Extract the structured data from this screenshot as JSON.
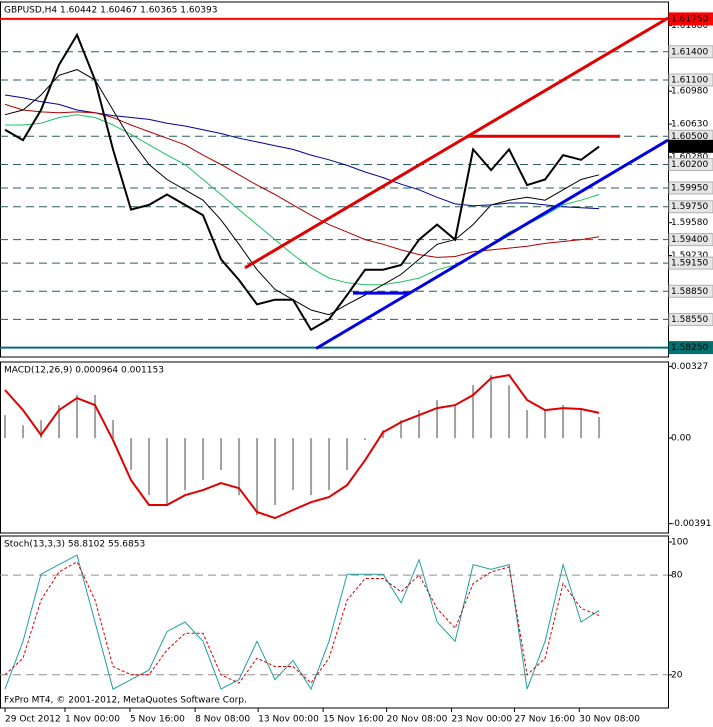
{
  "footer": "FxPro MT4, © 2001-2012, MetaQuotes Software Corp.",
  "chart_data": [
    {
      "type": "line",
      "title": "GBPUSD,H4 1.60442 1.60467 1.60365 1.60393",
      "xlim": [
        -0.28,
        36.83
      ],
      "ylim": [
        1.5815,
        1.6193
      ],
      "xticks": [
        {
          "value": 0,
          "label": "29 Oct 2012"
        },
        {
          "value": 3.33,
          "label": "1 Nov 00:00"
        },
        {
          "value": 6.94,
          "label": "5 Nov 16:00"
        },
        {
          "value": 10.56,
          "label": "8 Nov 08:00"
        },
        {
          "value": 14.06,
          "label": "13 Nov 00:00"
        },
        {
          "value": 17.67,
          "label": "15 Nov 16:00"
        },
        {
          "value": 21.2,
          "label": "20 Nov 08:00"
        },
        {
          "value": 24.8,
          "label": "23 Nov 00:00"
        },
        {
          "value": 28.3,
          "label": "27 Nov 16:00"
        },
        {
          "value": 31.9,
          "label": "30 Nov 08:00"
        }
      ],
      "yticks": [
        {
          "value": 1.6168,
          "label": "1.61680"
        },
        {
          "value": 1.6098,
          "label": "1.60980"
        },
        {
          "value": 1.6063,
          "label": "1.60630"
        },
        {
          "value": 1.6028,
          "label": "1.60280"
        },
        {
          "value": 1.5958,
          "label": "1.59580"
        },
        {
          "value": 1.5923,
          "label": "1.59230"
        }
      ],
      "levels": [
        {
          "value": 1.6175,
          "label": "1.61750",
          "color": "#ff0000",
          "style": "solid"
        },
        {
          "value": 1.614,
          "label": "1.61400",
          "color": "#2b5d5d",
          "style": "dashed"
        },
        {
          "value": 1.611,
          "label": "1.61100",
          "color": "#2b5d5d",
          "style": "dashed"
        },
        {
          "value": 1.605,
          "label": "1.60500",
          "color": "#2b5d5d",
          "style": "dashed"
        },
        {
          "value": 1.60393,
          "label": "1.60393",
          "color": "#000000",
          "style": "none"
        },
        {
          "value": 1.602,
          "label": "1.60200",
          "color": "#2b5d5d",
          "style": "dashed"
        },
        {
          "value": 1.5995,
          "label": "1.59950",
          "color": "#2b5d5d",
          "style": "dashed"
        },
        {
          "value": 1.5975,
          "label": "1.59750",
          "color": "#2b5d5d",
          "style": "dashed"
        },
        {
          "value": 1.594,
          "label": "1.59400",
          "color": "#2b5d5d",
          "style": "dashed"
        },
        {
          "value": 1.5915,
          "label": "1.59150",
          "color": "#2b5d5d",
          "style": "dashed"
        },
        {
          "value": 1.5885,
          "label": "1.58850",
          "color": "#2b5d5d",
          "style": "dashed"
        },
        {
          "value": 1.5855,
          "label": "1.58550",
          "color": "#2b5d5d",
          "style": "dashed"
        },
        {
          "value": 1.5825,
          "label": "1.58250",
          "color": "#007070",
          "style": "solid"
        }
      ],
      "series": [
        {
          "type": "line",
          "color": "#0000a0",
          "width": 1,
          "values": [
            1.6094,
            1.6091,
            1.6087,
            1.6084,
            1.6078,
            1.6075,
            1.6072,
            1.607,
            1.6068,
            1.6064,
            1.6061,
            1.6057,
            1.6053,
            1.6048,
            1.6044,
            1.604,
            1.6036,
            1.603,
            1.6025,
            1.6019,
            1.6012,
            1.6006,
            1.5999,
            1.5993,
            1.5985,
            1.5978,
            1.5976,
            1.5977,
            1.5979,
            1.5979,
            1.5977,
            1.5975,
            1.5974,
            1.5973
          ]
        },
        {
          "type": "line",
          "color": "#b00000",
          "width": 1,
          "values": [
            1.6084,
            1.6078,
            1.6076,
            1.6075,
            1.6076,
            1.6075,
            1.607,
            1.6062,
            1.6055,
            1.6048,
            1.6041,
            1.603,
            1.602,
            1.6009,
            1.5998,
            1.5988,
            1.5977,
            1.5966,
            1.5956,
            1.5948,
            1.594,
            1.5935,
            1.5929,
            1.5924,
            1.5921,
            1.5922,
            1.5927,
            1.5929,
            1.5931,
            1.5933,
            1.5936,
            1.5938,
            1.594,
            1.5943
          ]
        },
        {
          "type": "line",
          "color": "#20c060",
          "width": 1,
          "values": [
            1.6062,
            1.6062,
            1.6064,
            1.607,
            1.6073,
            1.607,
            1.6062,
            1.6052,
            1.6041,
            1.603,
            1.602,
            1.6004,
            1.5988,
            1.5972,
            1.5956,
            1.594,
            1.5924,
            1.591,
            1.5899,
            1.5894,
            1.5892,
            1.5892,
            1.5895,
            1.5899,
            1.5908,
            1.5913,
            1.5924,
            1.5935,
            1.5948,
            1.5956,
            1.5966,
            1.5977,
            1.5982,
            1.5988
          ]
        },
        {
          "type": "line",
          "color": "#000000",
          "width": 1,
          "values": [
            1.6073,
            1.6078,
            1.6094,
            1.6115,
            1.6121,
            1.611,
            1.6078,
            1.6046,
            1.602,
            1.6004,
            1.5993,
            1.5982,
            1.5961,
            1.5935,
            1.5908,
            1.5887,
            1.5876,
            1.5865,
            1.586,
            1.5871,
            1.5881,
            1.5892,
            1.5903,
            1.5919,
            1.5935,
            1.594,
            1.5956,
            1.5977,
            1.5982,
            1.5985,
            1.5982,
            1.5993,
            1.6004,
            1.6009
          ]
        },
        {
          "type": "line",
          "color": "#000000",
          "width": 2,
          "values": [
            1.6057,
            1.6046,
            1.6078,
            1.6126,
            1.6158,
            1.611,
            1.6036,
            1.5972,
            1.5977,
            1.5988,
            1.5977,
            1.5966,
            1.5919,
            1.5897,
            1.5871,
            1.5876,
            1.5876,
            1.5844,
            1.5855,
            1.5881,
            1.5908,
            1.5908,
            1.5913,
            1.594,
            1.5956,
            1.594,
            1.6036,
            1.6014,
            1.6036,
            1.5998,
            1.6004,
            1.603,
            1.6025,
            1.6039
          ]
        }
      ],
      "trendlines": [
        {
          "color": "#e00000",
          "x": [
            13.33,
            36.83
          ],
          "y": [
            1.591,
            1.6176
          ]
        },
        {
          "color": "#e00000",
          "x": [
            25.67,
            34.17
          ],
          "y": [
            1.605,
            1.605
          ]
        },
        {
          "color": "#0000e0",
          "x": [
            17.28,
            36.83
          ],
          "y": [
            1.5824,
            1.6046
          ]
        },
        {
          "color": "#0000e0",
          "x": [
            19.33,
            22.5
          ],
          "y": [
            1.5883,
            1.5883
          ]
        }
      ]
    },
    {
      "type": "line",
      "title": "MACD(12,26,9) 0.000964 0.001153",
      "xlim": [
        -0.28,
        36.83
      ],
      "ylim": [
        -0.00434,
        0.00348
      ],
      "yticks": [
        0.00327,
        {
          "value": 0,
          "label": "0.00"
        },
        -0.00391
      ],
      "series": [
        {
          "type": "bar",
          "color": "#a0a0a0",
          "width": 1,
          "values": [
            0.00105,
            0.00059,
            0.00082,
            0.00151,
            0.00197,
            0.00197,
            0.00082,
            -0.00146,
            -0.00261,
            -0.00306,
            -0.00238,
            -0.00192,
            -0.00146,
            -0.00261,
            -0.00352,
            -0.00306,
            -0.00238,
            -0.00261,
            -0.00238,
            -0.00146,
            -9e-05,
            0.00037,
            0.00082,
            0.00128,
            0.00174,
            0.00151,
            0.00242,
            0.00288,
            0.00242,
            0.00128,
            0.00128,
            0.00151,
            0.00128,
            0.000964
          ]
        },
        {
          "type": "line",
          "color": "#e00000",
          "width": 2,
          "values": [
            0.0022,
            0.00128,
            0.00014,
            0.00128,
            0.00183,
            0.00151,
            -9e-05,
            -0.00192,
            -0.00306,
            -0.00306,
            -0.00261,
            -0.00238,
            -0.00206,
            -0.00229,
            -0.00338,
            -0.00366,
            -0.00329,
            -0.00293,
            -0.0027,
            -0.00215,
            -0.00101,
            0.00027,
            0.00073,
            0.00105,
            0.00137,
            0.00151,
            0.00197,
            0.00274,
            0.00288,
            0.00174,
            0.00128,
            0.00137,
            0.00133,
            0.001153
          ]
        }
      ]
    },
    {
      "type": "line",
      "title": "Stoch(13,3,3) 58.8102 55.6853",
      "xlim": [
        -0.28,
        36.83
      ],
      "ylim": [
        0,
        103.6
      ],
      "yticks": [
        100,
        80,
        20
      ],
      "levels": [
        {
          "value": 80,
          "color": "#909090",
          "style": "dashed"
        },
        {
          "value": 20,
          "color": "#909090",
          "style": "dashed"
        }
      ],
      "series": [
        {
          "type": "line",
          "color": "#20a0a0",
          "width": 1,
          "values": [
            11.4,
            40.2,
            80.6,
            86.4,
            92.1,
            51.8,
            11.4,
            17.1,
            22.9,
            46,
            51.8,
            40.2,
            11.4,
            17.1,
            40.2,
            17.1,
            28.7,
            11.4,
            40.2,
            80.6,
            80.6,
            80.6,
            63.3,
            89.3,
            51.8,
            40.2,
            86.4,
            83.5,
            86.4,
            11.4,
            40.2,
            86.4,
            51.8,
            58.8102
          ]
        },
        {
          "type": "line",
          "color": "#e00000",
          "width": 1,
          "dash": true,
          "values": [
            20,
            30,
            65,
            82,
            88,
            65,
            25,
            20,
            20,
            35,
            45,
            45,
            20,
            15,
            30,
            25,
            25,
            15,
            30,
            65,
            78,
            78,
            70,
            80,
            60,
            48,
            75,
            82,
            85,
            20,
            30,
            75,
            60,
            55.6853
          ]
        }
      ]
    }
  ]
}
